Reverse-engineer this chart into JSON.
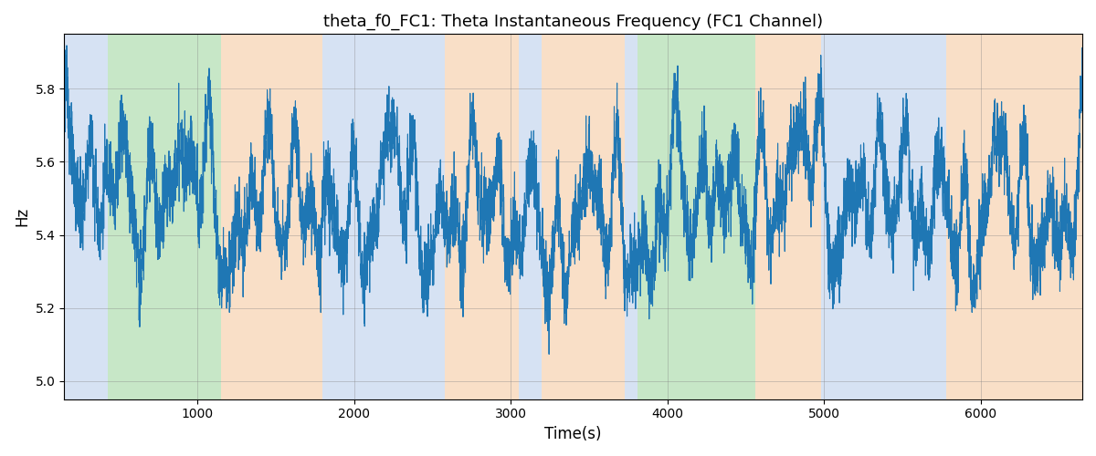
{
  "title": "theta_f0_FC1: Theta Instantaneous Frequency (FC1 Channel)",
  "xlabel": "Time(s)",
  "ylabel": "Hz",
  "ylim": [
    4.95,
    5.95
  ],
  "xlim": [
    150,
    6650
  ],
  "yticks": [
    5.0,
    5.2,
    5.4,
    5.6,
    5.8
  ],
  "xticks": [
    1000,
    2000,
    3000,
    4000,
    5000,
    6000
  ],
  "line_color": "#1f77b4",
  "line_width": 0.8,
  "grid_color": "gray",
  "grid_alpha": 0.5,
  "grid_linewidth": 0.5,
  "figsize": [
    12,
    5
  ],
  "dpi": 100,
  "colored_bands": [
    {
      "xmin": 150,
      "xmax": 430,
      "color": "#aec6e8",
      "alpha": 0.5
    },
    {
      "xmin": 430,
      "xmax": 1150,
      "color": "#90d090",
      "alpha": 0.5
    },
    {
      "xmin": 1150,
      "xmax": 1800,
      "color": "#f5c090",
      "alpha": 0.5
    },
    {
      "xmin": 1800,
      "xmax": 2580,
      "color": "#aec6e8",
      "alpha": 0.5
    },
    {
      "xmin": 2580,
      "xmax": 3050,
      "color": "#f5c090",
      "alpha": 0.5
    },
    {
      "xmin": 3050,
      "xmax": 3200,
      "color": "#aec6e8",
      "alpha": 0.5
    },
    {
      "xmin": 3200,
      "xmax": 3730,
      "color": "#f5c090",
      "alpha": 0.5
    },
    {
      "xmin": 3730,
      "xmax": 3810,
      "color": "#aec6e8",
      "alpha": 0.5
    },
    {
      "xmin": 3810,
      "xmax": 4560,
      "color": "#90d090",
      "alpha": 0.5
    },
    {
      "xmin": 4560,
      "xmax": 4980,
      "color": "#f5c090",
      "alpha": 0.5
    },
    {
      "xmin": 4980,
      "xmax": 5780,
      "color": "#aec6e8",
      "alpha": 0.5
    },
    {
      "xmin": 5780,
      "xmax": 6650,
      "color": "#f5c090",
      "alpha": 0.5
    }
  ],
  "mean_freq": 5.48,
  "n_points": 6500,
  "x_start": 150,
  "x_end": 6650,
  "seed": 123
}
